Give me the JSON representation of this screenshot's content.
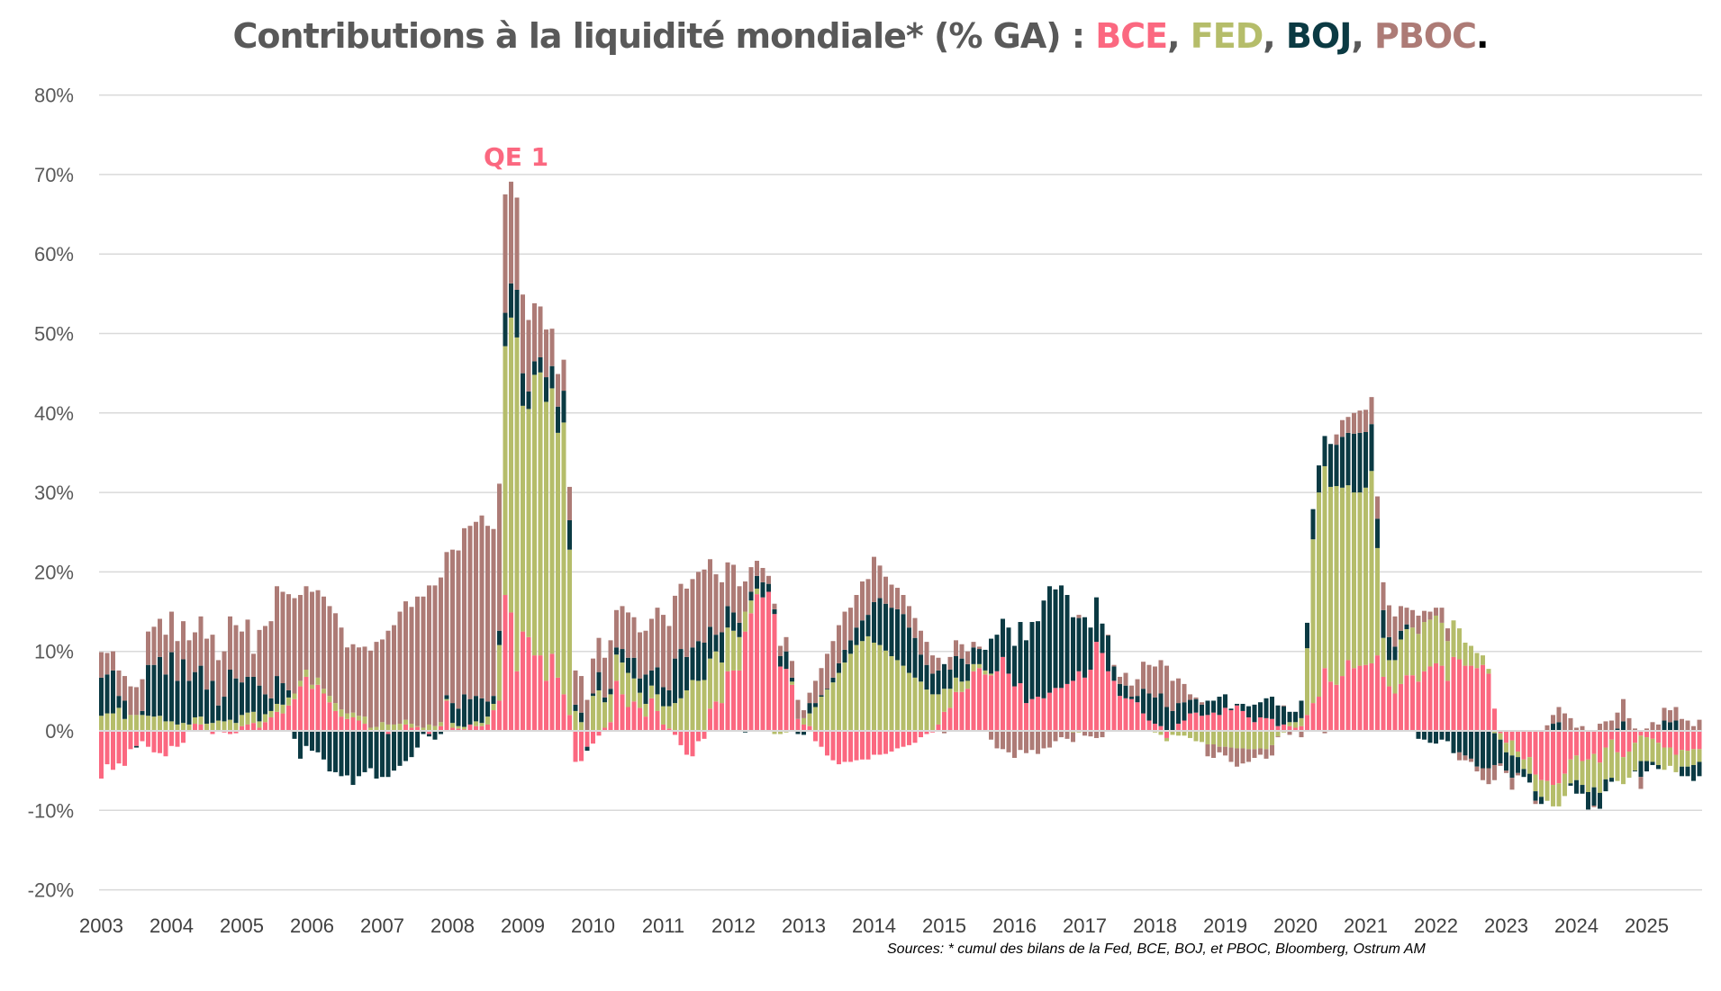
{
  "title": {
    "prefix": "Contributions à la liquidité mondiale* (% GA) : ",
    "sep": ", ",
    "end": ".",
    "names": [
      "BCE",
      "FED",
      "BOJ",
      "PBOC"
    ]
  },
  "annotation": {
    "text": "QE 1",
    "color": "#fb6880"
  },
  "source": "Sources: * cumul des bilans de la Fed, BCE, BOJ, et PBOC, Bloomberg, Ostrum AM",
  "chart_data": {
    "type": "bar",
    "stacked": true,
    "title": "Contributions à la liquidité mondiale* (% GA) : BCE, FED, BOJ, PBOC.",
    "x_start": "2003-01",
    "x_frequency": "monthly",
    "xlabel": "",
    "ylabel": "",
    "ylim": [
      -20,
      80
    ],
    "y_unit": "%",
    "yticks": [
      "-20%",
      "-10%",
      "0%",
      "10%",
      "20%",
      "30%",
      "40%",
      "50%",
      "60%",
      "70%",
      "80%"
    ],
    "xticks": [
      "2003",
      "2004",
      "2005",
      "2006",
      "2007",
      "2008",
      "2009",
      "2010",
      "2011",
      "2012",
      "2013",
      "2014",
      "2015",
      "2016",
      "2017",
      "2018",
      "2019",
      "2020",
      "2021",
      "2022",
      "2023",
      "2024",
      "2025"
    ],
    "grid": true,
    "legend": "none (series named in title)",
    "series": [
      {
        "name": "BCE",
        "color": "#fb6880",
        "values": [
          -6.0,
          -4.2,
          -4.9,
          -4.1,
          -4.4,
          -2.3,
          -1.9,
          -1.3,
          -2.0,
          -2.7,
          -2.8,
          -3.2,
          -1.9,
          -2.0,
          -1.5,
          0,
          0.9,
          0.8,
          0,
          -0.4,
          0,
          -0.2,
          -0.4,
          -0.3,
          0.6,
          0.8,
          1.0,
          0.4,
          1.1,
          1.7,
          2.4,
          2.2,
          3.2,
          4.0,
          5.6,
          6.8,
          5.3,
          5.8,
          4.7,
          3.6,
          2.5,
          1.8,
          1.5,
          1.7,
          1.3,
          0.9,
          0,
          0,
          0,
          -0.4,
          0,
          0,
          0.8,
          0.4,
          0.5,
          0,
          -0.4,
          0,
          0.6,
          3.8,
          0.4,
          0.3,
          0.2,
          0.8,
          0.6,
          0.6,
          0.8,
          2.6,
          3.8,
          17.1,
          14.9,
          7.5,
          12.5,
          11.8,
          9.5,
          9.5,
          6.3,
          9.7,
          6.7,
          4.6,
          2.0,
          -3.9,
          -3.8,
          -2.0,
          -1.6,
          -0.6,
          0.4,
          1.1,
          6.3,
          4.6,
          3.0,
          3.7,
          2.9,
          1.8,
          4.1,
          2.5,
          0.8,
          0.3,
          -0.5,
          -1.8,
          -3.0,
          -3.2,
          -1.3,
          -1.0,
          2.8,
          3.7,
          3.5,
          7.5,
          7.6,
          7.6,
          12.5,
          14.8,
          17.2,
          16.8,
          17.5,
          14.7,
          8.1,
          7.8,
          5.8,
          1.5,
          0.8,
          0.6,
          -1.3,
          -2.0,
          -3.1,
          -3.7,
          -4.2,
          -3.9,
          -3.9,
          -3.7,
          -3.6,
          -3.6,
          -3.0,
          -3.0,
          -2.9,
          -2.6,
          -2.2,
          -2.0,
          -1.8,
          -1.5,
          -0.8,
          -0.4,
          -0.2,
          0.8,
          2.4,
          2.9,
          4.9,
          4.9,
          5.3,
          7.5,
          7.9,
          7.1,
          7.0,
          7.5,
          9.3,
          7.2,
          5.6,
          6.0,
          3.5,
          4.0,
          4.3,
          4.1,
          4.8,
          5.4,
          5.4,
          5.9,
          6.3,
          7.5,
          6.7,
          7.7,
          11.2,
          9.8,
          7.5,
          6.3,
          4.4,
          4.1,
          4.0,
          3.6,
          2.2,
          1.3,
          0.9,
          0.6,
          -0.9,
          0,
          0.9,
          1.3,
          2.2,
          2.3,
          1.9,
          2.0,
          2.3,
          2.0,
          2.9,
          2.6,
          3.2,
          2.5,
          1.7,
          1.1,
          1.7,
          1.6,
          1.5,
          0.6,
          0.8,
          0.6,
          0.4,
          0.6,
          2.0,
          3.5,
          4.3,
          7.9,
          6.2,
          5.8,
          6.9,
          8.9,
          7.9,
          8.2,
          8.3,
          8.5,
          9.5,
          6.8,
          5.6,
          4.7,
          5.9,
          7.0,
          7.0,
          6.2,
          7.5,
          8.1,
          8.5,
          8.2,
          6.3,
          9.3,
          9.0,
          8.2,
          8.2,
          7.9,
          8.3,
          7.2,
          2.8,
          -0.3,
          -1.5,
          -1.2,
          -2.6,
          -3.6,
          -3.3,
          -5.5,
          -6.2,
          -6.3,
          -6.8,
          -6.6,
          -5.4,
          -3.6,
          -3.1,
          -3.8,
          -3.6,
          -2.9,
          -4.0,
          -2.1,
          -1.1,
          -2.7,
          -3.3,
          -2.6,
          -1.5,
          -0.6,
          -0.8,
          -1.0,
          -1.5,
          -2.1,
          -2.1,
          -3.0,
          -2.4,
          -2.5,
          -2.3,
          -2.3
        ]
      },
      {
        "name": "FED",
        "color": "#b5bd6a",
        "values": [
          1.9,
          2.2,
          2.2,
          2.9,
          1.5,
          2.0,
          2.0,
          2.0,
          1.9,
          1.8,
          1.9,
          1.2,
          1.2,
          0.8,
          1.0,
          0.8,
          0.8,
          1.0,
          0.9,
          1.0,
          1.3,
          1.2,
          1.4,
          1.0,
          1.4,
          1.5,
          1.4,
          0.8,
          1.0,
          0.8,
          1.0,
          1.1,
          1.0,
          0.7,
          0.7,
          0.9,
          0.5,
          0.9,
          0.6,
          0.8,
          1.0,
          0.9,
          0.7,
          0.6,
          0.6,
          0.9,
          0.4,
          0.5,
          1.1,
          0.8,
          0.8,
          0.9,
          0.6,
          0.5,
          0.1,
          0.4,
          0.8,
          0.6,
          0.5,
          0.2,
          0.6,
          0.3,
          0.3,
          0,
          0.6,
          0.4,
          1.0,
          0.8,
          7.0,
          31.3,
          37.1,
          42.0,
          28.4,
          28.7,
          35.3,
          35.6,
          35.1,
          33.4,
          30.8,
          34.2,
          20.8,
          2.5,
          1.1,
          0,
          4.4,
          5.1,
          3.2,
          3.5,
          3.3,
          4.0,
          4.3,
          2.9,
          1.9,
          1.6,
          1.6,
          2.1,
          2.3,
          2.8,
          3.5,
          4.1,
          5.1,
          6.4,
          6.3,
          6.4,
          6.3,
          6.3,
          5.1,
          5.5,
          5.0,
          4.2,
          2.5,
          1.6,
          0.7,
          0,
          0,
          -0.4,
          -0.4,
          -0.2,
          0.4,
          0,
          0.8,
          1.6,
          3.0,
          4.3,
          5.2,
          6.1,
          7.3,
          8.6,
          9.7,
          10.8,
          11.3,
          11.9,
          11.1,
          10.8,
          10.1,
          9.4,
          8.9,
          8.2,
          7.3,
          6.7,
          6.2,
          5.2,
          4.6,
          3.8,
          2.9,
          2.4,
          1.8,
          1.3,
          1.0,
          0.9,
          0.5,
          0.5,
          0.2,
          0,
          0,
          0,
          0,
          0,
          0,
          0,
          0,
          0,
          0,
          0,
          0,
          0,
          -0.2,
          -0.2,
          0,
          0,
          0,
          0,
          0,
          0,
          0,
          0,
          0,
          0,
          0,
          0,
          -0.2,
          -0.5,
          -0.4,
          -0.5,
          -0.6,
          -0.6,
          -0.9,
          -1.3,
          -1.4,
          -1.7,
          -1.7,
          -2.0,
          -2.0,
          -2.1,
          -2.2,
          -2.2,
          -2.3,
          -2.3,
          -2.2,
          -2.3,
          -1.8,
          -0.7,
          -0.2,
          0.5,
          0.7,
          1.0,
          8.4,
          20.6,
          25.7,
          25.4,
          24.5,
          25.0,
          23.7,
          22.0,
          22.1,
          21.8,
          22.3,
          24.2,
          13.5,
          4.9,
          3.3,
          4.2,
          5.6,
          5.8,
          6.0,
          6.0,
          6.2,
          5.9,
          6.0,
          5.4,
          5.0,
          4.6,
          3.9,
          2.9,
          2.5,
          1.9,
          1.2,
          0.6,
          -0.3,
          -0.8,
          -1.2,
          -1.9,
          -0.7,
          -1.2,
          -2.1,
          -2.1,
          -2.1,
          -2.5,
          -2.7,
          -2.9,
          -2.8,
          -3.0,
          -3.1,
          -3.0,
          -4.1,
          -4.2,
          -3.8,
          -4.0,
          -4.8,
          -3.6,
          -3.4,
          -3.3,
          -3.5,
          -3.2,
          -3.0,
          -2.9,
          -2.8,
          -2.8,
          -2.3,
          -2.2,
          -2.1,
          -2.0,
          -2.0,
          -1.6
        ]
      },
      {
        "name": "BOJ",
        "color": "#0b3a43",
        "values": [
          4.8,
          4.9,
          5.4,
          1.5,
          2.3,
          0,
          -0.2,
          0.5,
          6.4,
          6.5,
          7.4,
          5.9,
          8.7,
          5.5,
          8.0,
          5.5,
          5.7,
          6.4,
          4.3,
          5.3,
          1.9,
          3.1,
          6.3,
          5.6,
          4.1,
          4.5,
          4.4,
          4.5,
          2.5,
          1.6,
          3.5,
          2.7,
          0.9,
          -1.0,
          -3.5,
          -1.9,
          -2.5,
          -2.7,
          -3.6,
          -5.1,
          -5.2,
          -5.7,
          -5.6,
          -6.8,
          -5.7,
          -5.2,
          -4.7,
          -6.0,
          -5.8,
          -5.4,
          -5.0,
          -4.4,
          -3.8,
          -3.3,
          -2.1,
          -0.4,
          -0.3,
          -1.1,
          -0.4,
          0.5,
          2.5,
          2.2,
          4.1,
          3.2,
          3.2,
          3.1,
          1.9,
          1.0,
          1.8,
          4.2,
          4.3,
          6.0,
          4.1,
          2.2,
          1.7,
          1.9,
          3.1,
          2.8,
          3.3,
          4.0,
          3.7,
          0.8,
          1.2,
          -0.5,
          0.3,
          2.3,
          0.6,
          0.7,
          0.9,
          1.7,
          1.9,
          2.6,
          1.8,
          3.7,
          1.9,
          3.4,
          2.4,
          2.0,
          5.6,
          6.2,
          4.2,
          4.1,
          5.0,
          4.7,
          4.0,
          2.1,
          3.8,
          2.7,
          2.3,
          1.8,
          -0.2,
          1.1,
          1.6,
          1.9,
          1.0,
          0.6,
          1.3,
          2.2,
          0.5,
          -0.4,
          -0.5,
          1.3,
          0.5,
          0.2,
          0.1,
          0.6,
          1.2,
          1.6,
          1.7,
          2.2,
          2.6,
          2.7,
          5.1,
          5.9,
          5.9,
          6.1,
          6.4,
          6.5,
          5.7,
          5.0,
          3.4,
          3.1,
          2.6,
          3.0,
          3.1,
          2.4,
          2.7,
          2.9,
          2.1,
          2.1,
          1.9,
          2.6,
          4.4,
          4.6,
          4.8,
          5.8,
          5.1,
          7.7,
          7.9,
          9.7,
          9.5,
          12.3,
          13.4,
          12.4,
          12.9,
          11.2,
          8.0,
          6.7,
          7.6,
          5.3,
          5.6,
          3.7,
          4.5,
          1.8,
          1.5,
          1.6,
          0.3,
          0.8,
          3.1,
          3.4,
          3.3,
          4.1,
          3.0,
          2.5,
          2.6,
          2.3,
          1.7,
          1.7,
          1.4,
          1.8,
          1.5,
          2.3,
          1.7,
          0.2,
          0.2,
          0.9,
          1.4,
          2.2,
          1.9,
          2.5,
          2.8,
          2.6,
          2.3,
          1.3,
          1.3,
          2.2,
          3.2,
          3.8,
          3.4,
          3.8,
          5.4,
          5.2,
          6.4,
          6.6,
          7.4,
          7.5,
          7.0,
          5.9,
          3.7,
          3.5,
          2.9,
          1.7,
          1.1,
          0.6,
          0,
          -1.0,
          -1.1,
          -1.5,
          -1.6,
          -1.1,
          -1.3,
          -2.8,
          -2.7,
          -3.1,
          -3.5,
          -4.5,
          -4.7,
          -4.7,
          -4.0,
          -3.0,
          -2.3,
          -2.8,
          -2.0,
          -1.0,
          -1.1,
          -1.2,
          -0.9,
          0,
          0.9,
          1.1,
          0,
          -0.3,
          -1.7,
          -1.1,
          -2.2,
          -2.3,
          -2.0,
          -1.5,
          -0.5,
          0.3,
          1.2,
          0,
          -0.1,
          -2.0,
          -1.3,
          -0.4,
          -0.5,
          1.3,
          1.1,
          1.3,
          -1.2,
          -1.2,
          -2.0,
          -1.8
        ]
      },
      {
        "name": "PBOC",
        "color": "#ad7b76",
        "values": [
          3.2,
          2.7,
          2.4,
          3.2,
          3.1,
          3.6,
          3.5,
          4.0,
          4.2,
          4.8,
          4.8,
          5.0,
          5.1,
          5.0,
          4.8,
          5.1,
          5.0,
          6.2,
          6.4,
          5.8,
          5.7,
          5.7,
          6.7,
          6.7,
          6.4,
          7.2,
          2.9,
          7.0,
          8.6,
          9.7,
          11.3,
          11.5,
          12.1,
          12.0,
          10.8,
          10.5,
          11.7,
          11.0,
          11.6,
          11.3,
          11.3,
          10.3,
          8.3,
          8.6,
          8.6,
          8.8,
          9.7,
          10.7,
          10.4,
          11.8,
          12.5,
          14.1,
          14.9,
          14.7,
          16.3,
          16.5,
          17.5,
          17.7,
          18.2,
          18.0,
          19.3,
          19.9,
          20.9,
          21.8,
          21.9,
          23.0,
          22.1,
          21.0,
          18.5,
          14.9,
          12.8,
          11.6,
          9.9,
          9.0,
          7.3,
          6.4,
          6.0,
          4.7,
          4.1,
          3.9,
          4.2,
          4.3,
          4.6,
          3.9,
          4.4,
          4.3,
          5.0,
          6.1,
          4.7,
          5.4,
          5.7,
          5.1,
          5.8,
          5.5,
          6.5,
          7.5,
          9.1,
          8.1,
          7.9,
          8.2,
          8.6,
          8.6,
          8.7,
          9.2,
          8.5,
          7.6,
          6.3,
          5.5,
          6.0,
          4.6,
          3.8,
          3.1,
          1.9,
          1.8,
          1.0,
          0.7,
          1.3,
          1.8,
          2.1,
          2.4,
          1.0,
          1.3,
          2.8,
          3.4,
          4.4,
          4.6,
          4.8,
          4.8,
          4.1,
          4.1,
          4.9,
          4.5,
          5.7,
          4.1,
          3.4,
          2.9,
          2.7,
          2.4,
          2.7,
          2.5,
          3.0,
          2.9,
          2.3,
          1.6,
          -0.3,
          1.6,
          2.0,
          1.8,
          1.6,
          0.7,
          0.3,
          0,
          -1.1,
          -2.2,
          -2.3,
          -2.7,
          -3.4,
          -2.4,
          -2.8,
          -2.4,
          -2.9,
          -2.2,
          -2.1,
          -1.3,
          -0.8,
          -1.0,
          -1.2,
          0.4,
          -0.6,
          -0.7,
          -0.9,
          -0.8,
          0.1,
          0.2,
          0.9,
          1.6,
          1.4,
          2.1,
          3.4,
          3.6,
          3.9,
          4.2,
          5.2,
          3.8,
          3.1,
          2.3,
          0.7,
          0.2,
          0.3,
          -1.5,
          -1.7,
          -0.7,
          -1.1,
          -1.8,
          -2.3,
          -1.9,
          -1.6,
          -1.1,
          -0.8,
          -1.2,
          -1.3,
          -0.1,
          0.1,
          -0.5,
          0,
          -0.8,
          0,
          0,
          0,
          -0.3,
          0,
          1.3,
          2.1,
          2.0,
          2.6,
          2.8,
          2.8,
          3.4,
          2.8,
          3.5,
          4.0,
          3.8,
          3.1,
          2.1,
          2.2,
          2.3,
          1.4,
          1.0,
          1.0,
          1.9,
          1.6,
          0,
          -1.0,
          -0.6,
          -0.4,
          -0.6,
          -1.5,
          -2.0,
          -1.9,
          -0.3,
          -0.3,
          -1.5,
          -0.3,
          0,
          0.1,
          -0.4,
          0,
          0.7,
          1.1,
          1.9,
          2.2,
          1.6,
          0.4,
          0.6,
          0,
          -0.2,
          0.9,
          1.2,
          1.3,
          2.0,
          2.8,
          1.6,
          0.3,
          -1.5,
          0.3,
          1.1,
          0.8,
          1.6,
          1.5,
          1.7,
          1.5,
          1.3,
          0.6,
          1.4
        ]
      }
    ]
  },
  "colors": {
    "title_text": "#595959",
    "grid": "#d9d9d9",
    "final_dot": "#000000"
  }
}
